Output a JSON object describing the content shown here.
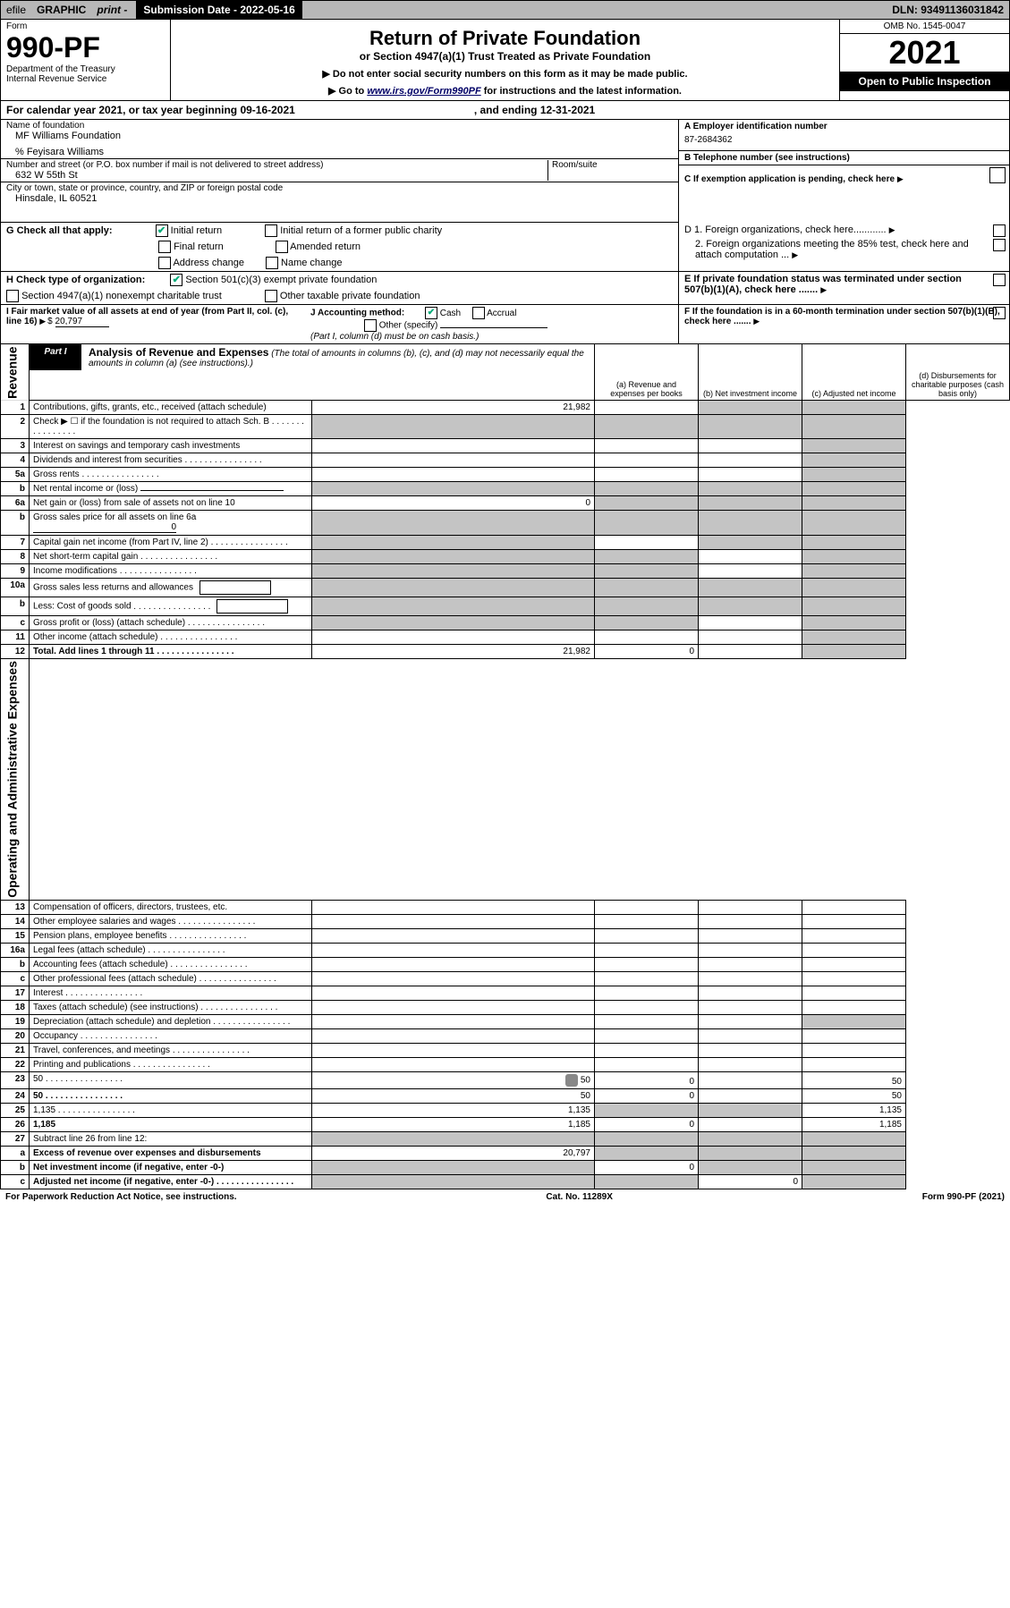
{
  "topbar": {
    "efile": "efile",
    "graphic": "GRAPHIC",
    "print": "print -",
    "subdate_label": "Submission Date - 2022-05-16",
    "dln": "DLN: 93491136031842"
  },
  "header": {
    "form": "Form",
    "formno": "990-PF",
    "dept1": "Department of the Treasury",
    "dept2": "Internal Revenue Service",
    "title": "Return of Private Foundation",
    "subtitle": "or Section 4947(a)(1) Trust Treated as Private Foundation",
    "note1": "▶ Do not enter social security numbers on this form as it may be made public.",
    "note2_pre": "▶ Go to ",
    "note2_link": "www.irs.gov/Form990PF",
    "note2_post": " for instructions and the latest information.",
    "omb": "OMB No. 1545-0047",
    "year": "2021",
    "open": "Open to Public Inspection"
  },
  "calendar": {
    "text": "For calendar year 2021, or tax year beginning 09-16-2021",
    "ending": ", and ending 12-31-2021"
  },
  "entity": {
    "name_label": "Name of foundation",
    "name": "MF Williams Foundation",
    "care_of": "% Feyisara Williams",
    "street_label": "Number and street (or P.O. box number if mail is not delivered to street address)",
    "street": "632 W 55th St",
    "room_label": "Room/suite",
    "city_label": "City or town, state or province, country, and ZIP or foreign postal code",
    "city": "Hinsdale, IL  60521",
    "ein_label": "A Employer identification number",
    "ein": "87-2684362",
    "phone_label": "B Telephone number (see instructions)",
    "c_label": "C If exemption application is pending, check here",
    "d1_label": "D 1. Foreign organizations, check here............",
    "d2_label": "2. Foreign organizations meeting the 85% test, check here and attach computation ...",
    "e_label": "E  If private foundation status was terminated under section 507(b)(1)(A), check here .......",
    "f_label": "F  If the foundation is in a 60-month termination under section 507(b)(1)(B), check here .......",
    "g_label": "G Check all that apply:",
    "g_initial": "Initial return",
    "g_initial_former": "Initial return of a former public charity",
    "g_final": "Final return",
    "g_amended": "Amended return",
    "g_address": "Address change",
    "g_name": "Name change",
    "h_label": "H Check type of organization:",
    "h_501c3": "Section 501(c)(3) exempt private foundation",
    "h_4947": "Section 4947(a)(1) nonexempt charitable trust",
    "h_other_tax": "Other taxable private foundation",
    "i_label": "I Fair market value of all assets at end of year (from Part II, col. (c), line 16)",
    "i_amt": "20,797",
    "j_label": "J Accounting method:",
    "j_cash": "Cash",
    "j_accrual": "Accrual",
    "j_other": "Other (specify)",
    "j_note": "(Part I, column (d) must be on cash basis.)"
  },
  "part1": {
    "label": "Part I",
    "title": "Analysis of Revenue and Expenses",
    "note": " (The total of amounts in columns (b), (c), and (d) may not necessarily equal the amounts in column (a) (see instructions).)",
    "col_a": "(a) Revenue and expenses per books",
    "col_b": "(b) Net investment income",
    "col_c": "(c) Adjusted net income",
    "col_d": "(d) Disbursements for charitable purposes (cash basis only)",
    "side_revenue": "Revenue",
    "side_expenses": "Operating and Administrative Expenses"
  },
  "rows": [
    {
      "n": "1",
      "d": "Contributions, gifts, grants, etc., received (attach schedule)",
      "a": "21,982",
      "shade_b": false,
      "shade_c": true,
      "shade_d": true
    },
    {
      "n": "2",
      "d": "Check ▶ ☐ if the foundation is not required to attach Sch. B",
      "dots": true,
      "shade_a": true,
      "shade_b": true,
      "shade_c": true,
      "shade_d": true
    },
    {
      "n": "3",
      "d": "Interest on savings and temporary cash investments",
      "shade_d": true
    },
    {
      "n": "4",
      "d": "Dividends and interest from securities",
      "dots": true,
      "shade_d": true
    },
    {
      "n": "5a",
      "d": "Gross rents",
      "dots": true,
      "shade_d": true
    },
    {
      "n": "b",
      "d": "Net rental income or (loss)",
      "line": true,
      "shade_a": true,
      "shade_b": true,
      "shade_c": true,
      "shade_d": true
    },
    {
      "n": "6a",
      "d": "Net gain or (loss) from sale of assets not on line 10",
      "a": "0",
      "shade_b": true,
      "shade_c": true,
      "shade_d": true
    },
    {
      "n": "b",
      "d": "Gross sales price for all assets on line 6a",
      "line": true,
      "lineval": "0",
      "shade_a": true,
      "shade_b": true,
      "shade_c": true,
      "shade_d": true
    },
    {
      "n": "7",
      "d": "Capital gain net income (from Part IV, line 2)",
      "dots": true,
      "shade_a": true,
      "shade_c": true,
      "shade_d": true
    },
    {
      "n": "8",
      "d": "Net short-term capital gain",
      "dots": true,
      "shade_a": true,
      "shade_b": true,
      "shade_d": true
    },
    {
      "n": "9",
      "d": "Income modifications",
      "dots": true,
      "shade_a": true,
      "shade_b": true,
      "shade_d": true
    },
    {
      "n": "10a",
      "d": "Gross sales less returns and allowances",
      "box": true,
      "shade_a": true,
      "shade_b": true,
      "shade_c": true,
      "shade_d": true
    },
    {
      "n": "b",
      "d": "Less: Cost of goods sold",
      "dots": true,
      "box": true,
      "shade_a": true,
      "shade_b": true,
      "shade_c": true,
      "shade_d": true
    },
    {
      "n": "c",
      "d": "Gross profit or (loss) (attach schedule)",
      "dots": true,
      "shade_a": true,
      "shade_b": true,
      "shade_d": true
    },
    {
      "n": "11",
      "d": "Other income (attach schedule)",
      "dots": true,
      "shade_d": true
    },
    {
      "n": "12",
      "d": "Total. Add lines 1 through 11",
      "dots": true,
      "bold": true,
      "a": "21,982",
      "b": "0",
      "shade_d": true
    }
  ],
  "exp_rows": [
    {
      "n": "13",
      "d": "Compensation of officers, directors, trustees, etc."
    },
    {
      "n": "14",
      "d": "Other employee salaries and wages",
      "dots": true
    },
    {
      "n": "15",
      "d": "Pension plans, employee benefits",
      "dots": true
    },
    {
      "n": "16a",
      "d": "Legal fees (attach schedule)",
      "dots": true
    },
    {
      "n": "b",
      "d": "Accounting fees (attach schedule)",
      "dots": true
    },
    {
      "n": "c",
      "d": "Other professional fees (attach schedule)",
      "dots": true
    },
    {
      "n": "17",
      "d": "Interest",
      "dots": true
    },
    {
      "n": "18",
      "d": "Taxes (attach schedule) (see instructions)",
      "dots": true
    },
    {
      "n": "19",
      "d": "Depreciation (attach schedule) and depletion",
      "dots": true,
      "shade_d": true
    },
    {
      "n": "20",
      "d": "Occupancy",
      "dots": true
    },
    {
      "n": "21",
      "d": "Travel, conferences, and meetings",
      "dots": true
    },
    {
      "n": "22",
      "d": "Printing and publications",
      "dots": true
    },
    {
      "n": "23",
      "d": "50",
      "dots": true,
      "icon": true,
      "a": "50",
      "b": "0"
    },
    {
      "n": "24",
      "d": "50",
      "dots": true,
      "bold": true,
      "a": "50",
      "b": "0"
    },
    {
      "n": "25",
      "d": "1,135",
      "dots": true,
      "a": "1,135",
      "shade_b": true,
      "shade_c": true
    },
    {
      "n": "26",
      "d": "1,185",
      "bold": true,
      "a": "1,185",
      "b": "0"
    },
    {
      "n": "27",
      "d": "Subtract line 26 from line 12:",
      "shade_a": true,
      "shade_b": true,
      "shade_c": true,
      "shade_d": true
    },
    {
      "n": "a",
      "d": "Excess of revenue over expenses and disbursements",
      "bold": true,
      "a": "20,797",
      "shade_b": true,
      "shade_c": true,
      "shade_d": true
    },
    {
      "n": "b",
      "d": "Net investment income (if negative, enter -0-)",
      "bold": true,
      "shade_a": true,
      "b": "0",
      "shade_c": true,
      "shade_d": true
    },
    {
      "n": "c",
      "d": "Adjusted net income (if negative, enter -0-)",
      "bold": true,
      "dots": true,
      "shade_a": true,
      "shade_b": true,
      "c": "0",
      "shade_d": true
    }
  ],
  "footer": {
    "left": "For Paperwork Reduction Act Notice, see instructions.",
    "mid": "Cat. No. 11289X",
    "right": "Form 990-PF (2021)"
  }
}
